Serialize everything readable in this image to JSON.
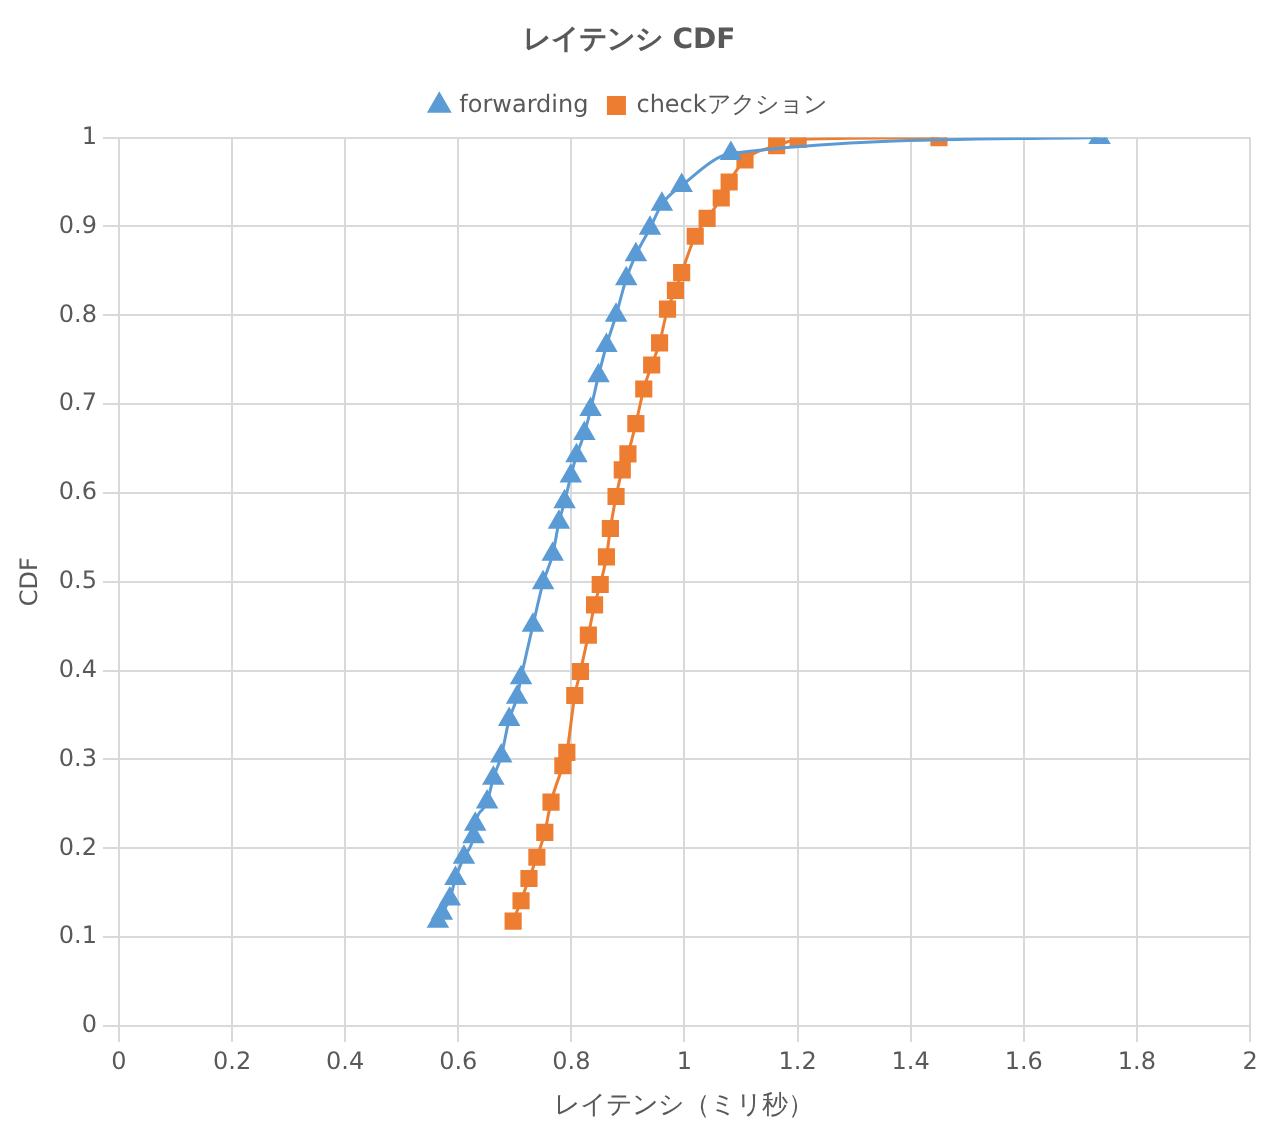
{
  "chart_data": {
    "type": "line",
    "title": "レイテンシ CDF",
    "xlabel": "レイテンシ（ミリ秒）",
    "ylabel": "CDF",
    "xlim": [
      0,
      2
    ],
    "xticks": [
      0,
      0.2,
      0.4,
      0.6,
      0.8,
      1,
      1.2,
      1.4,
      1.6,
      1.8,
      2
    ],
    "ylim": [
      0,
      1
    ],
    "yticks": [
      0,
      0.1,
      0.2,
      0.3,
      0.4,
      0.5,
      0.6,
      0.7,
      0.8,
      0.9,
      1
    ],
    "grid": true,
    "legend": "top",
    "series": [
      {
        "name": "forwarding",
        "color": "#5b9bd5",
        "marker": "triangle",
        "x": [
          0.564,
          0.571,
          0.585,
          0.595,
          0.61,
          0.627,
          0.63,
          0.651,
          0.662,
          0.676,
          0.69,
          0.704,
          0.711,
          0.732,
          0.75,
          0.767,
          0.778,
          0.788,
          0.799,
          0.809,
          0.823,
          0.834,
          0.848,
          0.862,
          0.879,
          0.897,
          0.914,
          0.939,
          0.96,
          0.995,
          1.082,
          1.734
        ],
        "values": [
          0.118,
          0.127,
          0.143,
          0.166,
          0.19,
          0.213,
          0.227,
          0.252,
          0.279,
          0.304,
          0.345,
          0.37,
          0.392,
          0.451,
          0.499,
          0.531,
          0.567,
          0.59,
          0.619,
          0.642,
          0.667,
          0.694,
          0.732,
          0.766,
          0.8,
          0.841,
          0.868,
          0.898,
          0.925,
          0.946,
          0.982,
          1.0
        ]
      },
      {
        "name": "checkアクション",
        "color": "#ed7d31",
        "marker": "square",
        "x": [
          0.697,
          0.711,
          0.725,
          0.739,
          0.753,
          0.764,
          0.785,
          0.792,
          0.806,
          0.816,
          0.83,
          0.841,
          0.851,
          0.862,
          0.869,
          0.879,
          0.89,
          0.9,
          0.914,
          0.928,
          0.942,
          0.956,
          0.97,
          0.984,
          0.995,
          1.019,
          1.04,
          1.065,
          1.079,
          1.107,
          1.163,
          1.201,
          1.45
        ],
        "values": [
          0.118,
          0.141,
          0.166,
          0.19,
          0.218,
          0.252,
          0.293,
          0.308,
          0.372,
          0.399,
          0.44,
          0.474,
          0.497,
          0.528,
          0.56,
          0.596,
          0.626,
          0.644,
          0.678,
          0.717,
          0.744,
          0.769,
          0.807,
          0.828,
          0.848,
          0.889,
          0.909,
          0.932,
          0.95,
          0.975,
          0.991,
          0.998,
          1.0
        ]
      }
    ]
  }
}
